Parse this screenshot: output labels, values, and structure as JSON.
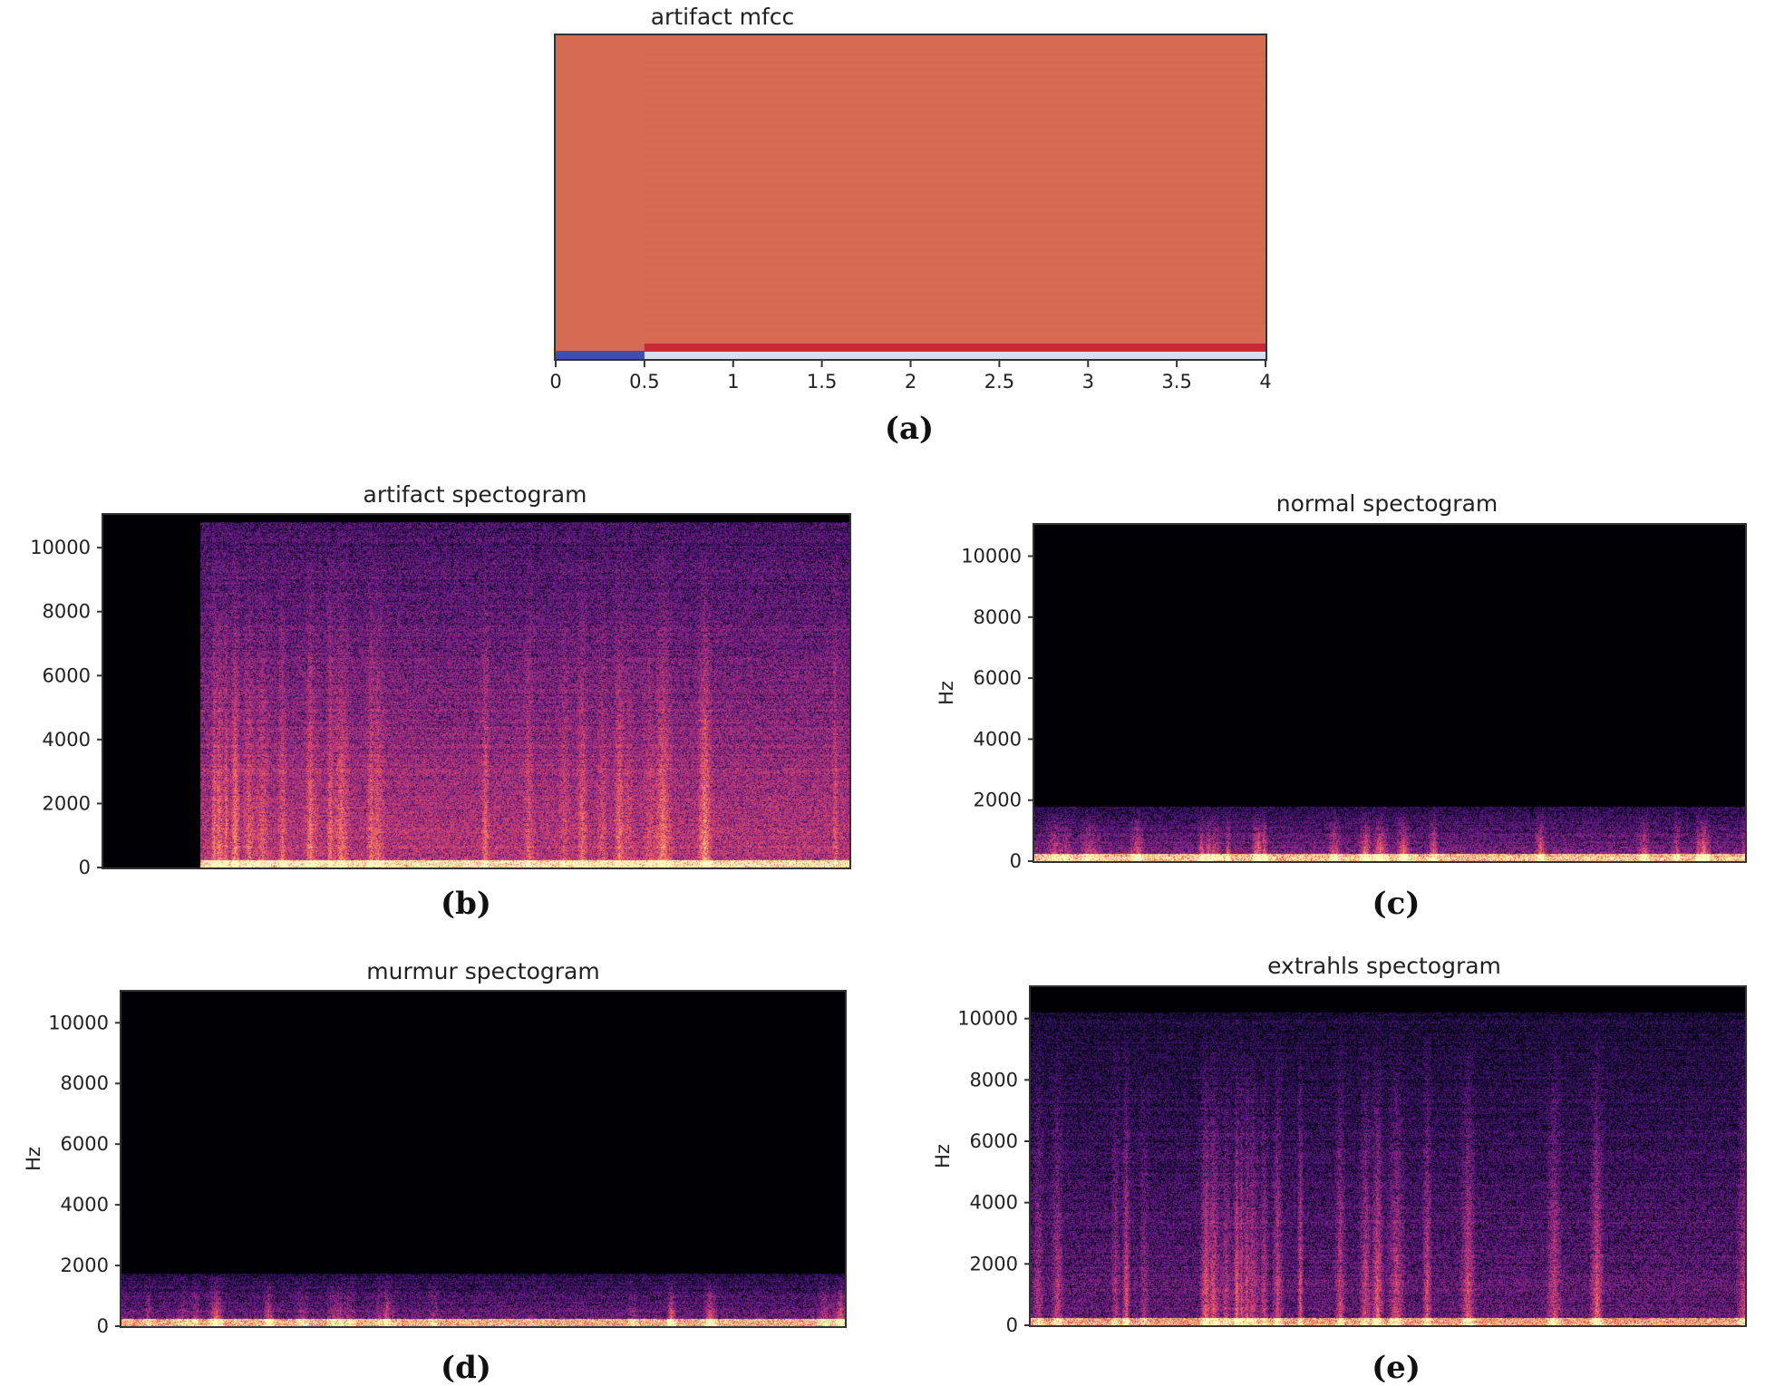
{
  "chart_data": [
    {
      "id": "a",
      "type": "heatmap",
      "title": "artifact mfcc",
      "caption": "(a)",
      "xlim": [
        0,
        4
      ],
      "xticks": [
        "0",
        "0.5",
        "1",
        "1.5",
        "2",
        "2.5",
        "3",
        "3.5",
        "4"
      ],
      "xtick_values": [
        0,
        0.5,
        1,
        1.5,
        2,
        2.5,
        3,
        3.5,
        4
      ],
      "silent_until": 0.5,
      "colors": {
        "body": "#d66a52",
        "low_band": "#3b4fb0",
        "high_band": "#c8283a",
        "light_band": "#d6def2"
      }
    },
    {
      "id": "b",
      "type": "heatmap",
      "title": "artifact spectogram",
      "caption": "(b)",
      "ylabel": "",
      "ylim": [
        0,
        11025
      ],
      "yticks": [
        "0",
        "2000",
        "4000",
        "6000",
        "8000",
        "10000"
      ],
      "ytick_values": [
        0,
        2000,
        4000,
        6000,
        8000,
        10000
      ],
      "energy_top_hz": 10800,
      "silent_fraction": 0.13,
      "colormap": "magma"
    },
    {
      "id": "c",
      "type": "heatmap",
      "title": "normal spectogram",
      "caption": "(c)",
      "ylabel": "Hz",
      "ylim": [
        0,
        11025
      ],
      "yticks": [
        "0",
        "2000",
        "4000",
        "6000",
        "8000",
        "10000"
      ],
      "ytick_values": [
        0,
        2000,
        4000,
        6000,
        8000,
        10000
      ],
      "energy_top_hz": 1800,
      "colormap": "magma"
    },
    {
      "id": "d",
      "type": "heatmap",
      "title": "murmur spectogram",
      "caption": "(d)",
      "ylabel": "Hz",
      "ylim": [
        0,
        11025
      ],
      "yticks": [
        "0",
        "2000",
        "4000",
        "6000",
        "8000",
        "10000"
      ],
      "ytick_values": [
        0,
        2000,
        4000,
        6000,
        8000,
        10000
      ],
      "energy_top_hz": 1750,
      "colormap": "magma"
    },
    {
      "id": "e",
      "type": "heatmap",
      "title": "extrahls spectogram",
      "caption": "(e)",
      "ylabel": "Hz",
      "ylim": [
        0,
        11025
      ],
      "yticks": [
        "0",
        "2000",
        "4000",
        "6000",
        "8000",
        "10000"
      ],
      "ytick_values": [
        0,
        2000,
        4000,
        6000,
        8000,
        10000
      ],
      "energy_top_hz": 10200,
      "colormap": "magma"
    }
  ]
}
